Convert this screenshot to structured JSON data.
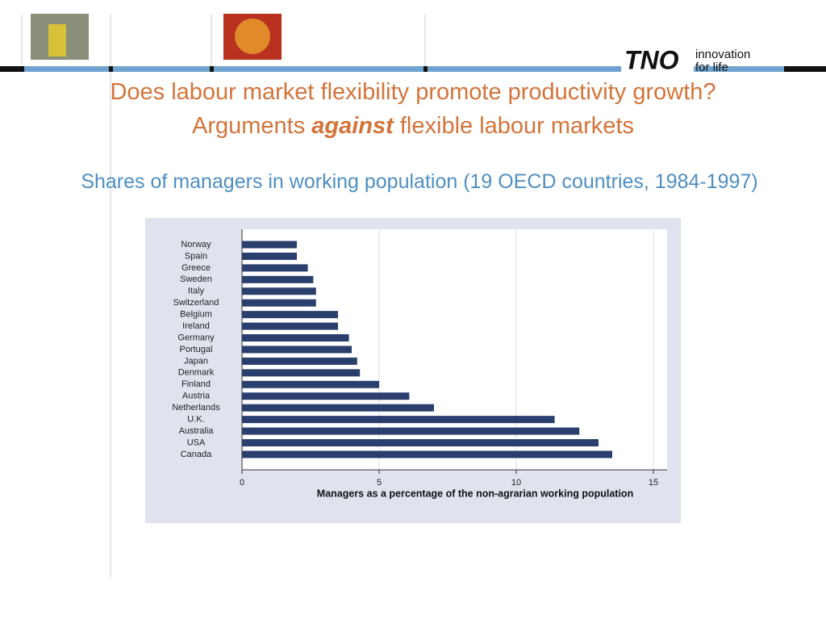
{
  "slide": {
    "title": "Does labour market flexibility promote productivity growth?",
    "title2": [
      "Arguments ",
      "against",
      " flexible labour markets"
    ],
    "subtitle": "Shares of managers in working population (19 OECD countries, 1984-1997)",
    "logo": {
      "brand": "TNO",
      "tagline1": "innovation",
      "tagline2": "for life"
    }
  },
  "chart_data": {
    "type": "hbar",
    "x_label": "Managers as a percentage of the non-agrarian working population",
    "categories": [
      "Norway",
      "Spain",
      "Greece",
      "Sweden",
      "Italy",
      "Switzerland",
      "Belgium",
      "Ireland",
      "Germany",
      "Portugal",
      "Japan",
      "Denmark",
      "Finland",
      "Austria",
      "Netherlands",
      "U.K.",
      "Australia",
      "USA",
      "Canada"
    ],
    "values": [
      2.0,
      2.0,
      2.4,
      2.6,
      2.7,
      2.7,
      3.5,
      3.5,
      3.9,
      4.0,
      4.2,
      4.3,
      5.0,
      6.1,
      7.0,
      11.4,
      12.3,
      13.0,
      13.5
    ],
    "color": "#2b3f6e",
    "xlim": [
      0,
      15.5
    ],
    "xticks": [
      0,
      5,
      10,
      15
    ],
    "grid": true
  }
}
